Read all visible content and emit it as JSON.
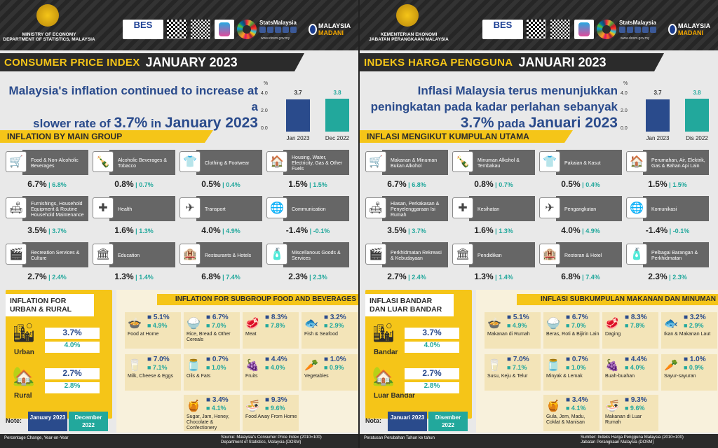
{
  "colors": {
    "accent": "#f5c518",
    "dark": "#2b2b2b",
    "blue": "#2a4b8c",
    "teal": "#22a89c",
    "card": "#666666"
  },
  "panels": [
    {
      "ministry": "MINISTRY OF ECONOMY\nDEPARTMENT OF STATISTICS, MALAYSIA",
      "title_yellow": "CONSUMER PRICE INDEX",
      "title_white": "JANUARY 2023",
      "headline": [
        "Malaysia's inflation continued to increase at a",
        "slower rate of"
      ],
      "headline_rate": "3.7%",
      "headline_in": "in",
      "headline_month": "January 2023",
      "chart_data": {
        "type": "bar",
        "categories": [
          "Jan 2023",
          "Dec 2022"
        ],
        "values": [
          3.7,
          3.8
        ],
        "ylabel": "%",
        "ylim": [
          0,
          4.0
        ],
        "ticks": [
          "4.0",
          "2.0",
          "0.0"
        ]
      },
      "section_main": "INFLATION BY MAIN GROUP",
      "groups": [
        {
          "label": "Food & Non-Alcoholic Beverages",
          "v1": "6.7%",
          "v2": "6.8%",
          "icon": "basket-icon",
          "glyph": "🛒"
        },
        {
          "label": "Alcoholic Beverages & Tobacco",
          "v1": "0.8%",
          "v2": "0.7%",
          "icon": "bottle-icon",
          "glyph": "🍾"
        },
        {
          "label": "Clothing & Footwear",
          "v1": "0.5%",
          "v2": "0.4%",
          "icon": "shirt-icon",
          "glyph": "👕"
        },
        {
          "label": "Housing, Water, Electricity, Gas & Other Fuels",
          "v1": "1.5%",
          "v2": "1.5%",
          "icon": "house-icon",
          "glyph": "🏠"
        },
        {
          "label": "Furnishings, Household Equipment & Routine Household Maintenance",
          "v1": "3.5%",
          "v2": "3.7%",
          "icon": "sofa-icon",
          "glyph": "🛋"
        },
        {
          "label": "Health",
          "v1": "1.6%",
          "v2": "1.3%",
          "icon": "health-icon",
          "glyph": "✚"
        },
        {
          "label": "Transport",
          "v1": "4.0%",
          "v2": "4.9%",
          "icon": "transport-icon",
          "glyph": "✈"
        },
        {
          "label": "Communication",
          "v1": "-1.4%",
          "v2": "-0.1%",
          "icon": "globe-icon",
          "glyph": "🌐"
        },
        {
          "label": "Recreation Services & Culture",
          "v1": "2.7%",
          "v2": "2.4%",
          "icon": "recreation-icon",
          "glyph": "🎬"
        },
        {
          "label": "Education",
          "v1": "1.3%",
          "v2": "1.4%",
          "icon": "education-icon",
          "glyph": "🏛"
        },
        {
          "label": "Restaurants & Hotels",
          "v1": "6.8%",
          "v2": "7.4%",
          "icon": "restaurant-icon",
          "glyph": "🏨"
        },
        {
          "label": "Miscellanous Goods & Services",
          "v1": "2.3%",
          "v2": "2.3%",
          "icon": "goods-icon",
          "glyph": "🧴"
        }
      ],
      "urban_title": "INFLATION FOR URBAN & RURAL",
      "urban": {
        "name": "Urban",
        "v1": "3.7%",
        "v2": "4.0%"
      },
      "rural": {
        "name": "Rural",
        "v1": "2.7%",
        "v2": "2.8%"
      },
      "food_title": "INFLATION FOR SUBGROUP FOOD AND BEVERAGES",
      "food": [
        {
          "label": "Food at Home",
          "v1": "5.1%",
          "v2": "4.9%",
          "icon": "food-home-icon",
          "glyph": "🍲"
        },
        {
          "label": "Rice, Bread & Other Cereals",
          "v1": "6.7%",
          "v2": "7.0%",
          "icon": "rice-icon",
          "glyph": "🍚"
        },
        {
          "label": "Meat",
          "v1": "8.3%",
          "v2": "7.8%",
          "icon": "meat-icon",
          "glyph": "🥩"
        },
        {
          "label": "Fish & Seafood",
          "v1": "3.2%",
          "v2": "2.9%",
          "icon": "fish-icon",
          "glyph": "🐟"
        },
        {
          "label": "Milk, Cheese & Eggs",
          "v1": "7.0%",
          "v2": "7.1%",
          "icon": "milk-icon",
          "glyph": "🥛"
        },
        {
          "label": "Oils & Fats",
          "v1": "0.7%",
          "v2": "1.0%",
          "icon": "oil-icon",
          "glyph": "🫙"
        },
        {
          "label": "Fruits",
          "v1": "4.4%",
          "v2": "4.0%",
          "icon": "fruit-icon",
          "glyph": "🍇"
        },
        {
          "label": "Vegetables",
          "v1": "1.0%",
          "v2": "0.9%",
          "icon": "vegetable-icon",
          "glyph": "🥕"
        },
        {
          "label": "Sugar, Jam, Honey, Chocolate & Confectionery",
          "v1": "3.4%",
          "v2": "4.1%",
          "icon": "sugar-icon",
          "glyph": "🍯"
        },
        {
          "label": "Food Away From Home",
          "v1": "9.3%",
          "v2": "9.6%",
          "icon": "food-away-icon",
          "glyph": "🍜"
        }
      ],
      "note": "Note:",
      "note_jan": "January 2023",
      "note_dec": "December 2022",
      "footer_left": "Percentage Change, Year-on-Year",
      "footer_right": "Source: Malaysia's Consumer Price Index (2010=100)\nDepartment of Statistics, Malaysia (DOSM)"
    },
    {
      "ministry": "KEMENTERIAN EKONOMI\nJABATAN PERANGKAAN MALAYSIA",
      "title_yellow": "INDEKS HARGA PENGGUNA",
      "title_white": "JANUARI 2023",
      "headline": [
        "Inflasi Malaysia terus menunjukkan",
        "peningkatan pada kadar perlahan sebanyak"
      ],
      "headline_rate": "3.7%",
      "headline_in": "pada",
      "headline_month": "Januari 2023",
      "chart_data": {
        "type": "bar",
        "categories": [
          "Jan 2023",
          "Dis 2022"
        ],
        "values": [
          3.7,
          3.8
        ],
        "ylabel": "%",
        "ylim": [
          0,
          4.0
        ],
        "ticks": [
          "4.0",
          "2.0",
          "0.0"
        ]
      },
      "section_main": "INFLASI MENGIKUT KUMPULAN UTAMA",
      "groups": [
        {
          "label": "Makanan & Minuman Bukan Alkohol",
          "v1": "6.7%",
          "v2": "6.8%",
          "icon": "basket-icon",
          "glyph": "🛒"
        },
        {
          "label": "Minuman Alkohol & Tembakau",
          "v1": "0.8%",
          "v2": "0.7%",
          "icon": "bottle-icon",
          "glyph": "🍾"
        },
        {
          "label": "Pakaian & Kasut",
          "v1": "0.5%",
          "v2": "0.4%",
          "icon": "shirt-icon",
          "glyph": "👕"
        },
        {
          "label": "Perumahan, Air, Elektrik, Gas & Bahan Api Lain",
          "v1": "1.5%",
          "v2": "1.5%",
          "icon": "house-icon",
          "glyph": "🏠"
        },
        {
          "label": "Hiasan, Perkakasan & Penyelenggaraan Isi Rumah",
          "v1": "3.5%",
          "v2": "3.7%",
          "icon": "sofa-icon",
          "glyph": "🛋"
        },
        {
          "label": "Kesihatan",
          "v1": "1.6%",
          "v2": "1.3%",
          "icon": "health-icon",
          "glyph": "✚"
        },
        {
          "label": "Pengangkutan",
          "v1": "4.0%",
          "v2": "4.9%",
          "icon": "transport-icon",
          "glyph": "✈"
        },
        {
          "label": "Komunikasi",
          "v1": "-1.4%",
          "v2": "-0.1%",
          "icon": "globe-icon",
          "glyph": "🌐"
        },
        {
          "label": "Perkhidmatan Rekreasi & Kebudayaan",
          "v1": "2.7%",
          "v2": "2.4%",
          "icon": "recreation-icon",
          "glyph": "🎬"
        },
        {
          "label": "Pendidikan",
          "v1": "1.3%",
          "v2": "1.4%",
          "icon": "education-icon",
          "glyph": "🏛"
        },
        {
          "label": "Restoran & Hotel",
          "v1": "6.8%",
          "v2": "7.4%",
          "icon": "restaurant-icon",
          "glyph": "🏨"
        },
        {
          "label": "Pelbagai Barangan & Perkhidmatan",
          "v1": "2.3%",
          "v2": "2.3%",
          "icon": "goods-icon",
          "glyph": "🧴"
        }
      ],
      "urban_title": "INFLASI BANDAR DAN LUAR BANDAR",
      "urban": {
        "name": "Bandar",
        "v1": "3.7%",
        "v2": "4.0%"
      },
      "rural": {
        "name": "Luar Bandar",
        "v1": "2.7%",
        "v2": "2.8%"
      },
      "food_title": "INFLASI SUBKUMPULAN MAKANAN DAN MINUMAN",
      "food": [
        {
          "label": "Makanan di Rumah",
          "v1": "5.1%",
          "v2": "4.9%",
          "icon": "food-home-icon",
          "glyph": "🍲"
        },
        {
          "label": "Beras, Roti & Bijirin Lain",
          "v1": "6.7%",
          "v2": "7.0%",
          "icon": "rice-icon",
          "glyph": "🍚"
        },
        {
          "label": "Daging",
          "v1": "8.3%",
          "v2": "7.8%",
          "icon": "meat-icon",
          "glyph": "🥩"
        },
        {
          "label": "Ikan & Makanan Laut",
          "v1": "3.2%",
          "v2": "2.9%",
          "icon": "fish-icon",
          "glyph": "🐟"
        },
        {
          "label": "Susu, Keju & Telur",
          "v1": "7.0%",
          "v2": "7.1%",
          "icon": "milk-icon",
          "glyph": "🥛"
        },
        {
          "label": "Minyak & Lemak",
          "v1": "0.7%",
          "v2": "1.0%",
          "icon": "oil-icon",
          "glyph": "🫙"
        },
        {
          "label": "Buah-buahan",
          "v1": "4.4%",
          "v2": "4.0%",
          "icon": "fruit-icon",
          "glyph": "🍇"
        },
        {
          "label": "Sayur-sayuran",
          "v1": "1.0%",
          "v2": "0.9%",
          "icon": "vegetable-icon",
          "glyph": "🥕"
        },
        {
          "label": "Gula, Jem, Madu, Coklat & Manisan",
          "v1": "3.4%",
          "v2": "4.1%",
          "icon": "sugar-icon",
          "glyph": "🍯"
        },
        {
          "label": "Makanan di Luar Rumah",
          "v1": "9.3%",
          "v2": "9.6%",
          "icon": "food-away-icon",
          "glyph": "🍜"
        }
      ],
      "note": "Nota:",
      "note_jan": "Januari 2023",
      "note_dec": "Disember 2022",
      "footer_left": "Peratusan Perubahan Tahun ke tahun",
      "footer_right": "Sumber: Indeks Harga Pengguna Malaysia (2010=100)\nJabatan Perangkaan Malaysia (DOSM)"
    }
  ],
  "logos": {
    "bes": "BES",
    "stats": "StatsMalaysia",
    "web": "www.dosm.gov.my",
    "madani1": "MALAYSIA",
    "madani2": "MADANI"
  }
}
